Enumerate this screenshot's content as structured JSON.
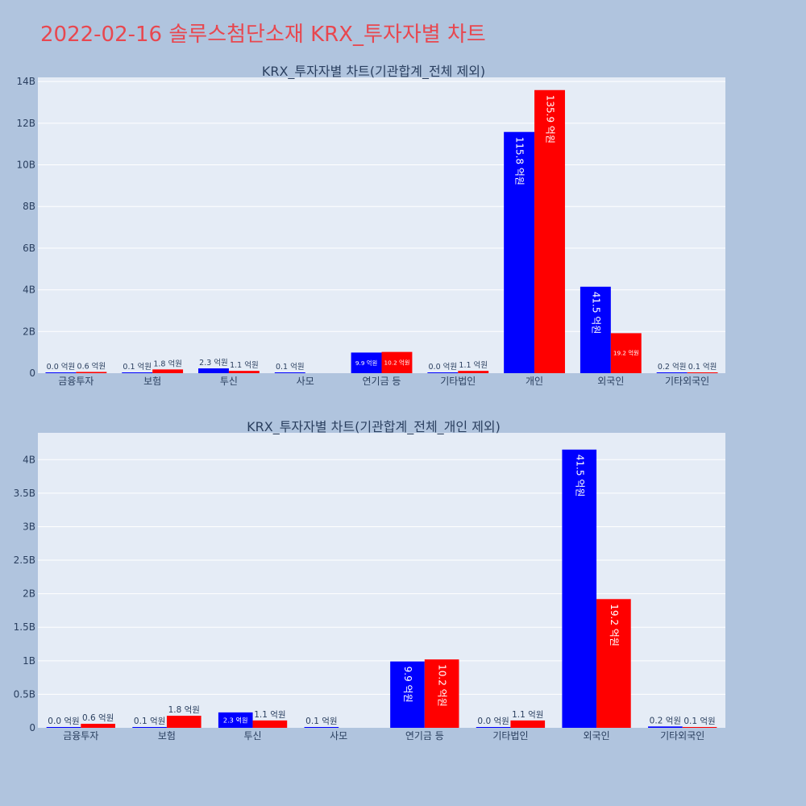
{
  "title": "2022-02-16 솔루스첨단소재 KRX_투자자별 차트",
  "colors": {
    "page_bg": "#b0c4de",
    "plot_bg": "#e5ecf6",
    "grid": "#ffffff",
    "series1": "#0000ff",
    "series2": "#ff0000",
    "title": "#e8474f",
    "text": "#2a3f5f"
  },
  "chart_data": [
    {
      "type": "bar",
      "title": "KRX_투자자별 차트(기관합계_전체 제외)",
      "categories": [
        "금융투자",
        "보험",
        "투신",
        "사모",
        "연기금 등",
        "기타법인",
        "개인",
        "외국인",
        "기타외국인"
      ],
      "ylim": [
        0,
        14.2
      ],
      "yticks": [
        0,
        2,
        4,
        6,
        8,
        10,
        12,
        14
      ],
      "ytick_labels": [
        "0",
        "2B",
        "4B",
        "6B",
        "8B",
        "10B",
        "12B",
        "14B"
      ],
      "grid": true,
      "series": [
        {
          "values": [
            0.002,
            0.006,
            0.23,
            0.005,
            0.99,
            0.002,
            11.58,
            4.15,
            0.02
          ],
          "labels": [
            "0.0 억원",
            "0.1 억원",
            "2.3 억원",
            "0.1 억원",
            "9.9 억원",
            "0.0 억원",
            "115.8 억원",
            "41.5 억원",
            "0.2 억원"
          ]
        },
        {
          "values": [
            0.06,
            0.18,
            0.11,
            null,
            1.02,
            0.11,
            13.59,
            1.92,
            0.01
          ],
          "labels": [
            "0.6 억원",
            "1.8 억원",
            "1.1 억원",
            null,
            "10.2 억원",
            "1.1 억원",
            "135.9 억원",
            "19.2 억원",
            "0.1 억원"
          ]
        }
      ]
    },
    {
      "type": "bar",
      "title": "KRX_투자자별 차트(기관합계_전체_개인 제외)",
      "categories": [
        "금융투자",
        "보험",
        "투신",
        "사모",
        "연기금 등",
        "기타법인",
        "외국인",
        "기타외국인"
      ],
      "ylim": [
        0,
        4.4
      ],
      "yticks": [
        0,
        0.5,
        1,
        1.5,
        2,
        2.5,
        3,
        3.5,
        4
      ],
      "ytick_labels": [
        "0",
        "0.5B",
        "1B",
        "1.5B",
        "2B",
        "2.5B",
        "3B",
        "3.5B",
        "4B"
      ],
      "grid": true,
      "series": [
        {
          "values": [
            0.002,
            0.006,
            0.23,
            0.005,
            0.99,
            0.002,
            4.15,
            0.02
          ],
          "labels": [
            "0.0 억원",
            "0.1 억원",
            "2.3 억원",
            "0.1 억원",
            "9.9 억원",
            "0.0 억원",
            "41.5 억원",
            "0.2 억원"
          ]
        },
        {
          "values": [
            0.06,
            0.18,
            0.11,
            null,
            1.02,
            0.11,
            1.92,
            0.01
          ],
          "labels": [
            "0.6 억원",
            "1.8 억원",
            "1.1 억원",
            null,
            "10.2 억원",
            "1.1 억원",
            "19.2 억원",
            "0.1 억원"
          ]
        }
      ]
    }
  ]
}
